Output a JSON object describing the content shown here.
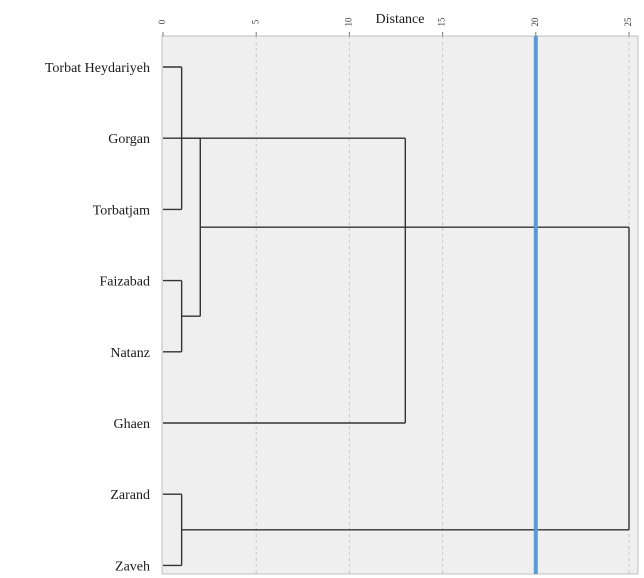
{
  "chart_data": {
    "type": "dendrogram",
    "xlabel": "Distance",
    "xlim": [
      0,
      25
    ],
    "x_ticks": [
      0,
      5,
      10,
      15,
      20,
      25
    ],
    "grid": "vertical-dashed",
    "leaves": [
      "Torbat Heydariyeh",
      "Gorgan",
      "Torbatjam",
      "Faizabad",
      "Natanz",
      "Ghaen",
      "Zarand",
      "Zaveh"
    ],
    "merges": [
      {
        "members": [
          "Torbat Heydariyeh",
          "Torbatjam"
        ],
        "distance": 1.0
      },
      {
        "members": [
          "Faizabad",
          "Natanz"
        ],
        "distance": 1.0
      },
      {
        "members": [
          "Zarand",
          "Zaveh"
        ],
        "distance": 1.0
      },
      {
        "members": [
          "Gorgan",
          "Faizabad"
        ],
        "distance": 2.0
      },
      {
        "members": [
          "Torbatjam",
          "Ghaen"
        ],
        "distance": 13.0
      },
      {
        "members": [
          "Faizabad",
          "Zarand"
        ],
        "distance": 25.0
      }
    ],
    "cut_line": {
      "distance": 20,
      "color": "#5b9bd5"
    },
    "colors": {
      "plot_background": "#efefef",
      "links": "#333333",
      "grid": "#c8c8c8"
    }
  }
}
